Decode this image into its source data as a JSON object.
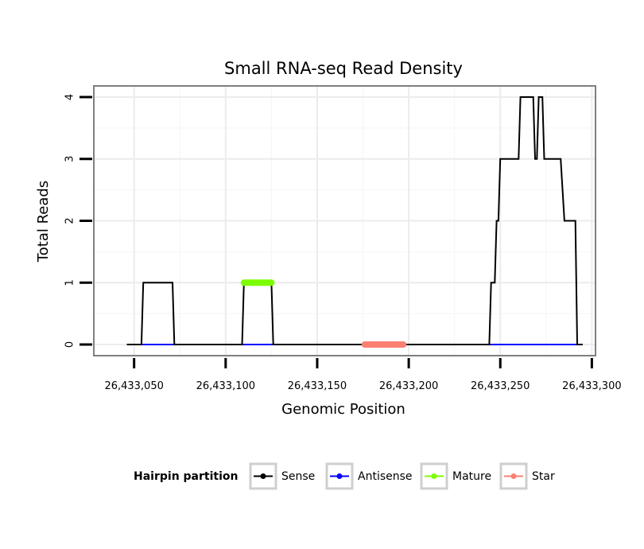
{
  "chart_data": {
    "type": "line",
    "title": "Small RNA-seq Read Density",
    "xlabel": "Genomic Position",
    "ylabel": "Total Reads",
    "xlim": [
      26433028,
      26433302
    ],
    "ylim": [
      -0.18,
      4.18
    ],
    "x_ticks": [
      26433050,
      26433100,
      26433150,
      26433200,
      26433250,
      26433300
    ],
    "x_tick_labels": [
      "26,433,050",
      "26,433,100",
      "26,433,150",
      "26,433,200",
      "26,433,250",
      "26,433,300"
    ],
    "y_ticks": [
      0,
      1,
      2,
      3,
      4
    ],
    "y_tick_labels": [
      "0",
      "1",
      "2",
      "3",
      "4"
    ],
    "grid": true,
    "legend": {
      "position": "bottom",
      "title": "Hairpin partition",
      "entries": [
        "Sense",
        "Antisense",
        "Mature",
        "Star"
      ]
    },
    "series": [
      {
        "name": "Sense",
        "color": "#000000",
        "x": [
          26433046,
          26433054,
          26433055,
          26433071,
          26433072,
          26433109,
          26433110,
          26433125,
          26433126,
          26433244,
          26433245,
          26433247,
          26433248,
          26433249,
          26433250,
          26433260,
          26433261,
          26433268,
          26433269,
          26433270,
          26433271,
          26433273,
          26433274,
          26433283,
          26433285,
          26433291,
          26433292,
          26433295
        ],
        "y": [
          0,
          0,
          1,
          1,
          0,
          0,
          1,
          1,
          0,
          0,
          1,
          1,
          2,
          2,
          3,
          3,
          4,
          4,
          3,
          3,
          4,
          4,
          3,
          3,
          2,
          2,
          0,
          0
        ]
      },
      {
        "name": "Antisense",
        "color": "#0000ff",
        "x": [
          26433054,
          26433295
        ],
        "y": [
          0,
          0
        ]
      },
      {
        "name": "Mature",
        "color": "#7cfc00",
        "x": [
          26433110,
          26433125
        ],
        "y": [
          1,
          1
        ]
      },
      {
        "name": "Star",
        "color": "#fa8072",
        "x": [
          26433176,
          26433197
        ],
        "y": [
          0,
          0
        ]
      }
    ]
  }
}
